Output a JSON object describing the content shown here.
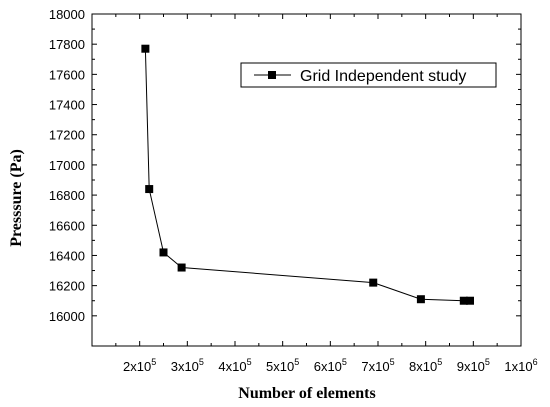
{
  "chart_data": {
    "type": "line",
    "xlabel": "Number of elements",
    "ylabel": "Presssure (Pa)",
    "xlim": [
      100000,
      1000000
    ],
    "ylim": [
      15800,
      18000
    ],
    "x_ticks": [
      {
        "value": 200000,
        "mantissa": "2x10",
        "exp": "5"
      },
      {
        "value": 300000,
        "mantissa": "3x10",
        "exp": "5"
      },
      {
        "value": 400000,
        "mantissa": "4x10",
        "exp": "5"
      },
      {
        "value": 500000,
        "mantissa": "5x10",
        "exp": "5"
      },
      {
        "value": 600000,
        "mantissa": "6x10",
        "exp": "5"
      },
      {
        "value": 700000,
        "mantissa": "7x10",
        "exp": "5"
      },
      {
        "value": 800000,
        "mantissa": "8x10",
        "exp": "5"
      },
      {
        "value": 900000,
        "mantissa": "9x10",
        "exp": "5"
      },
      {
        "value": 1000000,
        "mantissa": "1x10",
        "exp": "6"
      }
    ],
    "y_ticks": [
      16000,
      16200,
      16400,
      16600,
      16800,
      17000,
      17200,
      17400,
      17600,
      17800,
      18000
    ],
    "legend_position": "top-right",
    "grid": false,
    "series": [
      {
        "name": "Grid Independent study",
        "color": "#000000",
        "marker": "square",
        "x": [
          212000,
          220000,
          250000,
          288000,
          690000,
          790000,
          880000,
          893000
        ],
        "y": [
          17770,
          16840,
          16420,
          16320,
          16220,
          16110,
          16100,
          16100
        ]
      }
    ]
  }
}
